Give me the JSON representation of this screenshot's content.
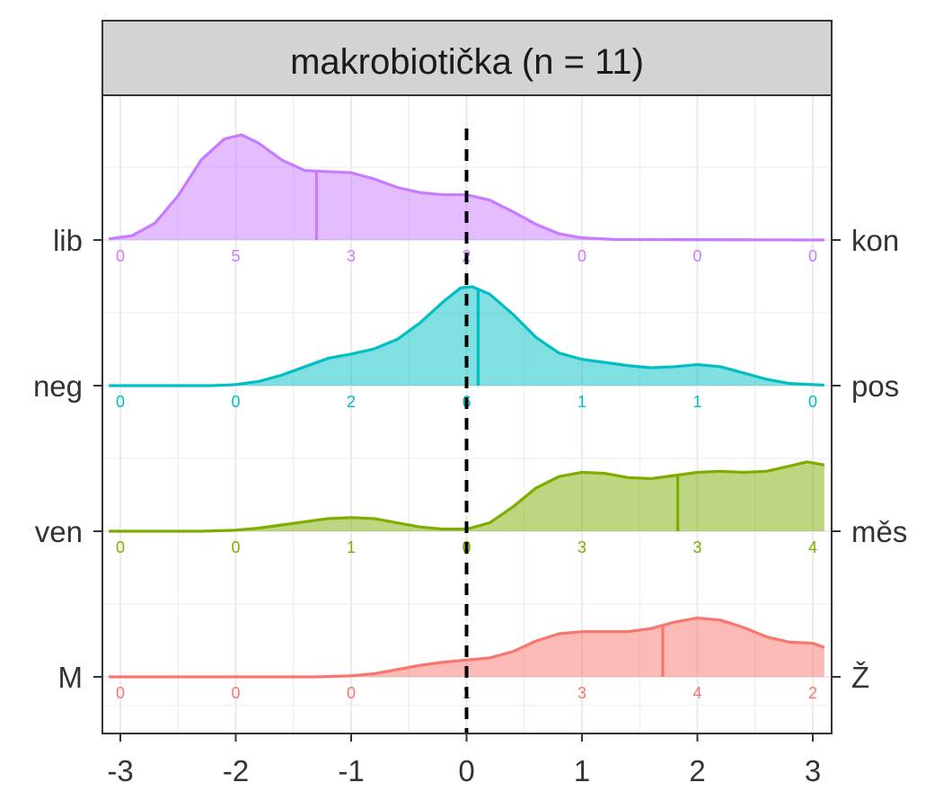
{
  "chart_data": {
    "type": "ridgeline",
    "title": "makrobiotička (n = 11)",
    "xlim": [
      -3.1,
      3.1
    ],
    "x_ticks": [
      -3,
      -2,
      -1,
      0,
      1,
      2,
      3
    ],
    "x_tick_labels": [
      "-3",
      "-2",
      "-1",
      "0",
      "1",
      "2",
      "3"
    ],
    "reference_line_x": 0,
    "grid": true,
    "series": [
      {
        "left_label": "lib",
        "right_label": "kon",
        "color": "#C77CFF",
        "mean": -1.3,
        "count_x": [
          -3,
          -2,
          -1,
          0,
          1,
          2,
          3
        ],
        "counts": [
          0,
          5,
          3,
          2,
          0,
          0,
          0
        ],
        "density": [
          [
            -3.1,
            0.01
          ],
          [
            -2.9,
            0.04
          ],
          [
            -2.7,
            0.16
          ],
          [
            -2.5,
            0.42
          ],
          [
            -2.3,
            0.76
          ],
          [
            -2.1,
            0.96
          ],
          [
            -1.95,
            1.0
          ],
          [
            -1.8,
            0.92
          ],
          [
            -1.6,
            0.76
          ],
          [
            -1.4,
            0.66
          ],
          [
            -1.2,
            0.65
          ],
          [
            -1.0,
            0.64
          ],
          [
            -0.8,
            0.58
          ],
          [
            -0.6,
            0.5
          ],
          [
            -0.4,
            0.45
          ],
          [
            -0.2,
            0.43
          ],
          [
            0.0,
            0.43
          ],
          [
            0.2,
            0.38
          ],
          [
            0.4,
            0.27
          ],
          [
            0.6,
            0.15
          ],
          [
            0.8,
            0.06
          ],
          [
            1.0,
            0.02
          ],
          [
            1.3,
            0.005
          ],
          [
            3.1,
            0.0
          ]
        ]
      },
      {
        "left_label": "neg",
        "right_label": "pos",
        "color": "#00BFC4",
        "mean": 0.1,
        "count_x": [
          -3,
          -2,
          -1,
          0,
          1,
          2,
          3
        ],
        "counts": [
          0,
          0,
          2,
          6,
          1,
          1,
          0
        ],
        "density": [
          [
            -3.1,
            0.0
          ],
          [
            -2.2,
            0.0
          ],
          [
            -2.0,
            0.01
          ],
          [
            -1.8,
            0.04
          ],
          [
            -1.6,
            0.1
          ],
          [
            -1.4,
            0.18
          ],
          [
            -1.2,
            0.26
          ],
          [
            -1.0,
            0.3
          ],
          [
            -0.8,
            0.35
          ],
          [
            -0.6,
            0.44
          ],
          [
            -0.4,
            0.6
          ],
          [
            -0.2,
            0.8
          ],
          [
            -0.05,
            0.93
          ],
          [
            0.05,
            0.94
          ],
          [
            0.2,
            0.87
          ],
          [
            0.4,
            0.68
          ],
          [
            0.6,
            0.46
          ],
          [
            0.8,
            0.31
          ],
          [
            1.0,
            0.25
          ],
          [
            1.2,
            0.22
          ],
          [
            1.4,
            0.19
          ],
          [
            1.6,
            0.17
          ],
          [
            1.8,
            0.18
          ],
          [
            2.0,
            0.2
          ],
          [
            2.2,
            0.18
          ],
          [
            2.4,
            0.12
          ],
          [
            2.6,
            0.06
          ],
          [
            2.8,
            0.02
          ],
          [
            3.1,
            0.005
          ]
        ]
      },
      {
        "left_label": "ven",
        "right_label": "měs",
        "color": "#7CAE00",
        "mean": 1.83,
        "count_x": [
          -3,
          -2,
          -1,
          0,
          1,
          2,
          3
        ],
        "counts": [
          0,
          0,
          1,
          0,
          3,
          3,
          4
        ],
        "density": [
          [
            -3.1,
            0.0
          ],
          [
            -2.3,
            0.0
          ],
          [
            -2.0,
            0.01
          ],
          [
            -1.8,
            0.03
          ],
          [
            -1.6,
            0.06
          ],
          [
            -1.4,
            0.09
          ],
          [
            -1.2,
            0.12
          ],
          [
            -1.0,
            0.13
          ],
          [
            -0.8,
            0.12
          ],
          [
            -0.6,
            0.08
          ],
          [
            -0.4,
            0.04
          ],
          [
            -0.2,
            0.02
          ],
          [
            0.0,
            0.02
          ],
          [
            0.2,
            0.08
          ],
          [
            0.4,
            0.23
          ],
          [
            0.6,
            0.41
          ],
          [
            0.8,
            0.52
          ],
          [
            1.0,
            0.56
          ],
          [
            1.2,
            0.55
          ],
          [
            1.4,
            0.51
          ],
          [
            1.6,
            0.5
          ],
          [
            1.8,
            0.53
          ],
          [
            2.0,
            0.56
          ],
          [
            2.2,
            0.57
          ],
          [
            2.4,
            0.56
          ],
          [
            2.6,
            0.57
          ],
          [
            2.8,
            0.62
          ],
          [
            2.95,
            0.66
          ],
          [
            3.1,
            0.63
          ]
        ]
      },
      {
        "left_label": "M",
        "right_label": "Ž",
        "color": "#F8766D",
        "mean": 1.7,
        "count_x": [
          -3,
          -2,
          -1,
          0,
          1,
          2,
          3
        ],
        "counts": [
          0,
          0,
          0,
          1,
          3,
          4,
          2
        ],
        "density": [
          [
            -3.1,
            0.0
          ],
          [
            -1.3,
            0.0
          ],
          [
            -1.0,
            0.01
          ],
          [
            -0.8,
            0.03
          ],
          [
            -0.6,
            0.07
          ],
          [
            -0.4,
            0.11
          ],
          [
            -0.2,
            0.14
          ],
          [
            0.0,
            0.16
          ],
          [
            0.2,
            0.18
          ],
          [
            0.4,
            0.24
          ],
          [
            0.6,
            0.34
          ],
          [
            0.8,
            0.41
          ],
          [
            1.0,
            0.43
          ],
          [
            1.2,
            0.43
          ],
          [
            1.4,
            0.43
          ],
          [
            1.6,
            0.46
          ],
          [
            1.8,
            0.52
          ],
          [
            2.0,
            0.56
          ],
          [
            2.2,
            0.54
          ],
          [
            2.4,
            0.47
          ],
          [
            2.6,
            0.38
          ],
          [
            2.8,
            0.33
          ],
          [
            3.0,
            0.32
          ],
          [
            3.1,
            0.28
          ]
        ]
      }
    ]
  }
}
